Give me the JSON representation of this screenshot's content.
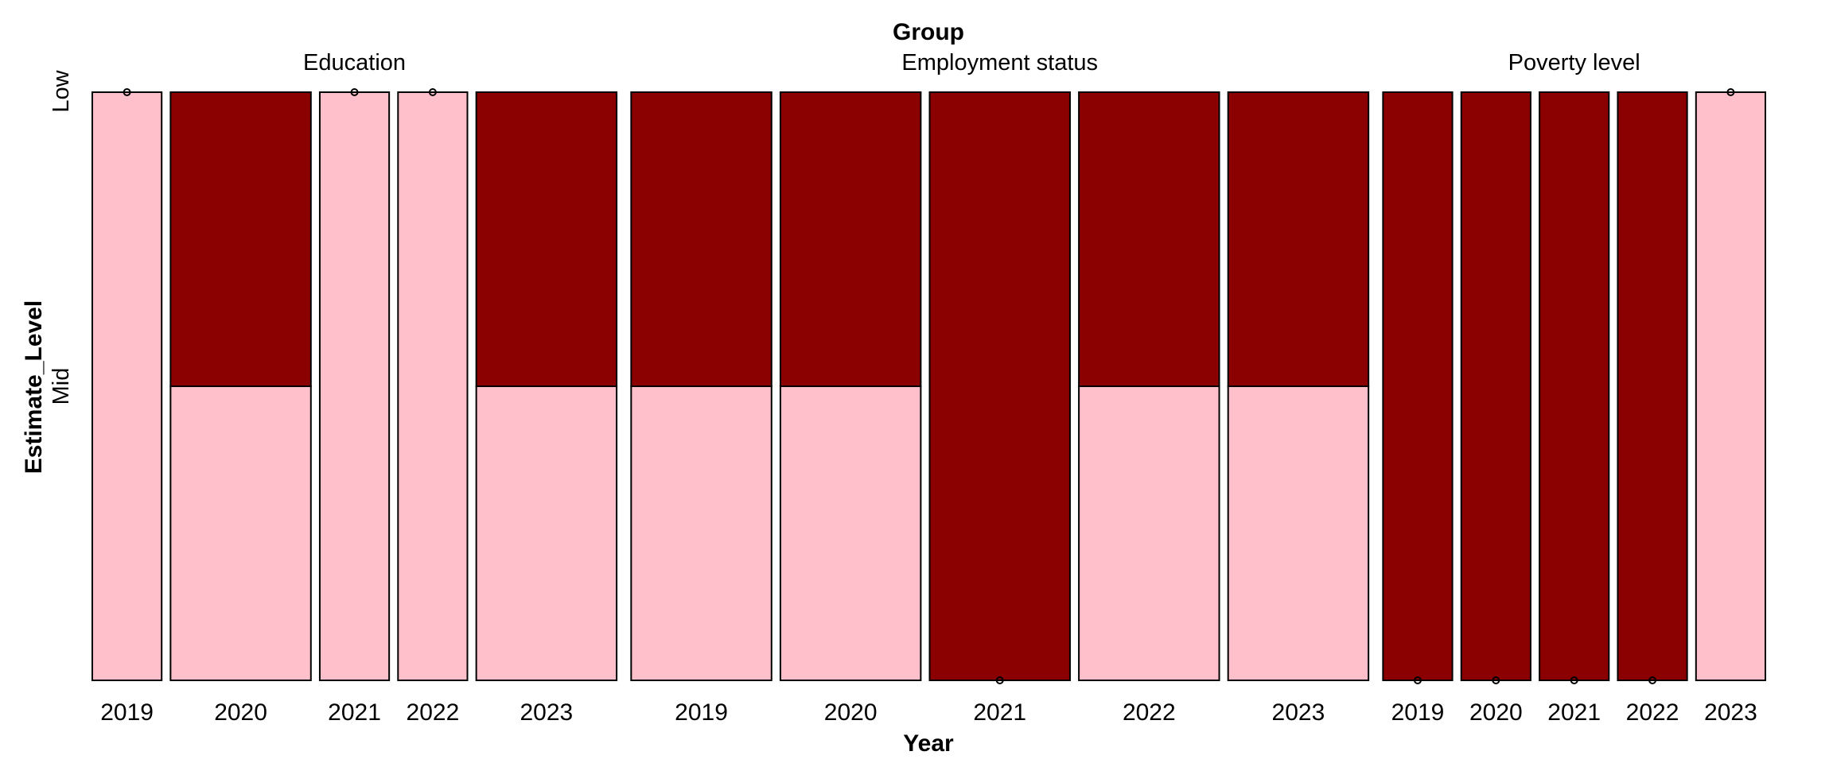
{
  "chart_data": {
    "type": "mosaic",
    "title": "Group",
    "xlabel": "Year",
    "ylabel": "Estimate_Level",
    "y_levels": [
      "Low",
      "Mid"
    ],
    "colors": {
      "Low": "#ffc0cb",
      "Mid": "#8b0000"
    },
    "groups": [
      {
        "name": "Education",
        "cells": [
          {
            "year": "2019",
            "weight": 1,
            "low_share": 1.0
          },
          {
            "year": "2020",
            "weight": 2,
            "low_share": 0.5
          },
          {
            "year": "2021",
            "weight": 1,
            "low_share": 1.0
          },
          {
            "year": "2022",
            "weight": 1,
            "low_share": 1.0
          },
          {
            "year": "2023",
            "weight": 2,
            "low_share": 0.5
          }
        ]
      },
      {
        "name": "Employment status",
        "cells": [
          {
            "year": "2019",
            "weight": 2,
            "low_share": 0.5
          },
          {
            "year": "2020",
            "weight": 2,
            "low_share": 0.5
          },
          {
            "year": "2021",
            "weight": 2,
            "low_share": 0.0
          },
          {
            "year": "2022",
            "weight": 2,
            "low_share": 0.5
          },
          {
            "year": "2023",
            "weight": 2,
            "low_share": 0.5
          }
        ]
      },
      {
        "name": "Poverty level",
        "cells": [
          {
            "year": "2019",
            "weight": 1,
            "low_share": 0.0
          },
          {
            "year": "2020",
            "weight": 1,
            "low_share": 0.0
          },
          {
            "year": "2021",
            "weight": 1,
            "low_share": 0.0
          },
          {
            "year": "2022",
            "weight": 1,
            "low_share": 0.0
          },
          {
            "year": "2023",
            "weight": 1,
            "low_share": 1.0
          }
        ]
      }
    ]
  }
}
